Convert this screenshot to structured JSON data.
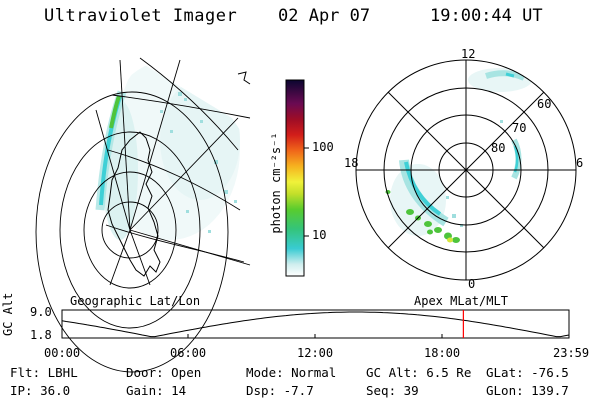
{
  "header": {
    "title": "Ultraviolet Imager",
    "date": "02 Apr 07",
    "time": "19:00:44 UT"
  },
  "colorbar": {
    "label": "photon cm⁻²s⁻¹",
    "tick_100": "100",
    "tick_10": "10"
  },
  "polar": {
    "label_12": "12",
    "label_18": "18",
    "label_6": "6",
    "label_0": "0",
    "label_60": "60",
    "label_70": "70",
    "label_80": "80"
  },
  "panels": {
    "left_caption": "Geographic Lat/Lon",
    "right_caption": "Apex MLat/MLT"
  },
  "altitude_plot": {
    "ylabel": "GC Alt",
    "y_top": "9.0",
    "y_bottom": "1.8",
    "x_ticks": [
      "00:00",
      "06:00",
      "12:00",
      "18:00",
      "23:59"
    ],
    "marker_time": "19:00"
  },
  "info": {
    "flt": "Flt: LBHL",
    "door": "Door: Open",
    "mode": "Mode: Normal",
    "gc_alt": "GC Alt: 6.5 Re",
    "glat": "GLat: -76.5",
    "ip": "IP: 36.0",
    "gain": "Gain: 14",
    "dsp": "Dsp:   -7.7",
    "seq": "Seq: 39",
    "glon": "GLon: 139.7"
  },
  "colors": {
    "marker": "#ff0000",
    "grid": "#000000",
    "aurora_faint": "#a8e4e2",
    "aurora_mid": "#3fd0d6",
    "aurora_green": "#4ec43c"
  }
}
